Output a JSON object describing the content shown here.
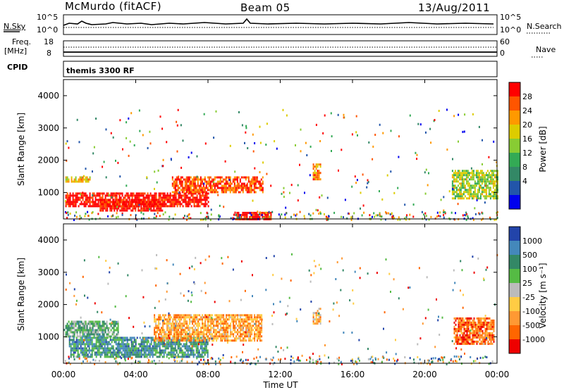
{
  "header": {
    "station": "McMurdo (fitACF)",
    "beam": "Beam 05",
    "date": "13/Aug/2011"
  },
  "colors": {
    "white": "#ffffff",
    "black": "#000000"
  },
  "noise_panel": {
    "left_label": "N.Sky",
    "right_label": "N.Search",
    "left_ticks": [
      "10^5",
      "10^0"
    ],
    "right_ticks": [
      "10^5",
      "10^0"
    ]
  },
  "freq_panel": {
    "left_label_1": "Freq.",
    "left_label_2": "[MHz]",
    "right_label": "Nave",
    "left_ticks": [
      "18",
      "8"
    ],
    "right_ticks": [
      "60",
      "0"
    ]
  },
  "cpid": {
    "label": "CPID",
    "value": "themis 3300 RF"
  },
  "chart_data": [
    {
      "type": "heatmap",
      "quantity": "Power",
      "ylabel": "Slant Range [km]",
      "yticks": [
        "4000",
        "3000",
        "2000",
        "1000"
      ],
      "ylim": [
        180,
        4500
      ],
      "colorbar_label": "Power [dB]",
      "colorbar_ticks": [
        "28",
        "24",
        "20",
        "16",
        "12",
        "8",
        "4"
      ],
      "colorbar_colors": [
        "#ff0000",
        "#ff5500",
        "#ff9900",
        "#ddcc00",
        "#88cc33",
        "#33aa55",
        "#338866",
        "#2255aa",
        "#0000ee"
      ],
      "regions": [
        {
          "t": [
            0.1,
            1.5
          ],
          "r": [
            1350,
            1500
          ],
          "level": 3
        },
        {
          "t": [
            0.1,
            8.0
          ],
          "r": [
            550,
            1000
          ],
          "level": 0
        },
        {
          "t": [
            2.0,
            5.5
          ],
          "r": [
            450,
            800
          ],
          "level": 0
        },
        {
          "t": [
            6.0,
            11.0
          ],
          "r": [
            1000,
            1500
          ],
          "level": 1
        },
        {
          "t": [
            9.5,
            11.5
          ],
          "r": [
            200,
            400
          ],
          "level": 0
        },
        {
          "t": [
            13.8,
            14.2
          ],
          "r": [
            1400,
            1900
          ],
          "level": 2
        },
        {
          "t": [
            21.5,
            24.0
          ],
          "r": [
            800,
            1700
          ],
          "level": 4
        }
      ]
    },
    {
      "type": "heatmap",
      "quantity": "Velocity",
      "ylabel": "Slant Range [km]",
      "yticks": [
        "4000",
        "3000",
        "2000",
        "1000"
      ],
      "ylim": [
        180,
        4500
      ],
      "xticks": [
        "00:00",
        "04:00",
        "08:00",
        "12:00",
        "16:00",
        "20:00",
        "00:00"
      ],
      "xlabel": "Time UT",
      "colorbar_label": "Velocity [m s⁻¹]",
      "colorbar_ticks": [
        "1000",
        "500",
        "100",
        "25",
        "-25",
        "-100",
        "-500",
        "-1000"
      ],
      "colorbar_colors": [
        "#2244aa",
        "#4488bb",
        "#338866",
        "#55bb44",
        "#bbbbbb",
        "#ffcc44",
        "#ff9933",
        "#ff6600",
        "#ee0000"
      ],
      "regions": [
        {
          "t": [
            0.1,
            3.0
          ],
          "r": [
            1000,
            1500
          ],
          "level": 3
        },
        {
          "t": [
            0.3,
            8.0
          ],
          "r": [
            400,
            1000
          ],
          "level": 2
        },
        {
          "t": [
            5.0,
            11.0
          ],
          "r": [
            900,
            1700
          ],
          "level": 6
        },
        {
          "t": [
            13.8,
            14.2
          ],
          "r": [
            1400,
            1900
          ],
          "level": 6
        },
        {
          "t": [
            21.6,
            23.8
          ],
          "r": [
            800,
            1600
          ],
          "level": 7
        }
      ]
    }
  ]
}
